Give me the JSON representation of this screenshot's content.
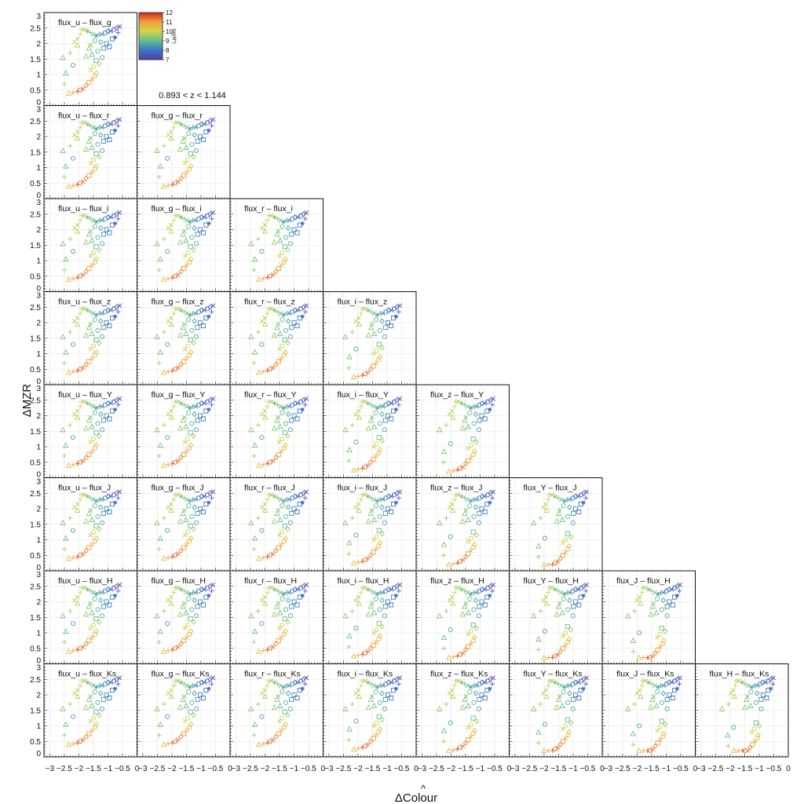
{
  "chart_data": {
    "type": "scatter",
    "layout": "lower-triangle pair grid",
    "redshift_label": "0.893 < z < 1.144",
    "xlabel": "ΔColour",
    "xlabel_hat": "^",
    "ylabel": "ΔMZR",
    "xlim": [
      -3.2,
      0
    ],
    "ylim": [
      0,
      3
    ],
    "x_ticks": [
      "−3",
      "−2.5",
      "−2",
      "−1.5",
      "−1",
      "−0.5",
      "0"
    ],
    "y_ticks": [
      "0",
      "0.5",
      "1",
      "1.5",
      "2",
      "2.5",
      "3"
    ],
    "grid": true,
    "colorbar": {
      "label": "log(M*)",
      "ticks": [
        "12",
        "11",
        "10",
        "9",
        "8",
        "7"
      ],
      "min": 7,
      "max": 12,
      "colors": [
        "#5a3d9e",
        "#3b74c9",
        "#5fbf8e",
        "#cfd64a",
        "#f3a03a",
        "#cc2a1e"
      ]
    },
    "panels": [
      {
        "row": 0,
        "col": 0,
        "title": "flux_u – flux_g"
      },
      {
        "row": 1,
        "col": 0,
        "title": "flux_u – flux_r"
      },
      {
        "row": 1,
        "col": 1,
        "title": "flux_g – flux_r"
      },
      {
        "row": 2,
        "col": 0,
        "title": "flux_u – flux_i"
      },
      {
        "row": 2,
        "col": 1,
        "title": "flux_g – flux_i"
      },
      {
        "row": 2,
        "col": 2,
        "title": "flux_r – flux_i"
      },
      {
        "row": 3,
        "col": 0,
        "title": "flux_u – flux_z"
      },
      {
        "row": 3,
        "col": 1,
        "title": "flux_g – flux_z"
      },
      {
        "row": 3,
        "col": 2,
        "title": "flux_r – flux_z"
      },
      {
        "row": 3,
        "col": 3,
        "title": "flux_i – flux_z"
      },
      {
        "row": 4,
        "col": 0,
        "title": "flux_u – flux_Y"
      },
      {
        "row": 4,
        "col": 1,
        "title": "flux_g – flux_Y"
      },
      {
        "row": 4,
        "col": 2,
        "title": "flux_r – flux_Y"
      },
      {
        "row": 4,
        "col": 3,
        "title": "flux_i – flux_Y"
      },
      {
        "row": 4,
        "col": 4,
        "title": "flux_z – flux_Y"
      },
      {
        "row": 5,
        "col": 0,
        "title": "flux_u – flux_J"
      },
      {
        "row": 5,
        "col": 1,
        "title": "flux_g – flux_J"
      },
      {
        "row": 5,
        "col": 2,
        "title": "flux_r – flux_J"
      },
      {
        "row": 5,
        "col": 3,
        "title": "flux_i – flux_J"
      },
      {
        "row": 5,
        "col": 4,
        "title": "flux_z – flux_J"
      },
      {
        "row": 5,
        "col": 5,
        "title": "flux_Y – flux_J"
      },
      {
        "row": 6,
        "col": 0,
        "title": "flux_u – flux_H"
      },
      {
        "row": 6,
        "col": 1,
        "title": "flux_g – flux_H"
      },
      {
        "row": 6,
        "col": 2,
        "title": "flux_r – flux_H"
      },
      {
        "row": 6,
        "col": 3,
        "title": "flux_i – flux_H"
      },
      {
        "row": 6,
        "col": 4,
        "title": "flux_z – flux_H"
      },
      {
        "row": 6,
        "col": 5,
        "title": "flux_Y – flux_H"
      },
      {
        "row": 6,
        "col": 6,
        "title": "flux_J – flux_H"
      },
      {
        "row": 7,
        "col": 0,
        "title": "flux_u – flux_Ks"
      },
      {
        "row": 7,
        "col": 1,
        "title": "flux_g – flux_Ks"
      },
      {
        "row": 7,
        "col": 2,
        "title": "flux_r – flux_Ks"
      },
      {
        "row": 7,
        "col": 3,
        "title": "flux_i – flux_Ks"
      },
      {
        "row": 7,
        "col": 4,
        "title": "flux_z – flux_Ks"
      },
      {
        "row": 7,
        "col": 5,
        "title": "flux_Y – flux_Ks"
      },
      {
        "row": 7,
        "col": 6,
        "title": "flux_J – flux_Ks"
      },
      {
        "row": 7,
        "col": 7,
        "title": "flux_H – flux_Ks"
      }
    ],
    "points": [
      {
        "x": -0.6,
        "y": 2.55,
        "m": 7.2,
        "s": "x"
      },
      {
        "x": -0.7,
        "y": 2.5,
        "m": 7.4,
        "s": "diamond"
      },
      {
        "x": -0.8,
        "y": 2.45,
        "m": 7.6,
        "s": "circle"
      },
      {
        "x": -0.9,
        "y": 2.4,
        "m": 7.8,
        "s": "x"
      },
      {
        "x": -0.65,
        "y": 2.35,
        "m": 7.5,
        "s": "plus"
      },
      {
        "x": -1.0,
        "y": 2.4,
        "m": 8.0,
        "s": "diamond"
      },
      {
        "x": -1.1,
        "y": 2.35,
        "m": 8.2,
        "s": "circle"
      },
      {
        "x": -1.2,
        "y": 2.3,
        "m": 8.4,
        "s": "x"
      },
      {
        "x": -0.75,
        "y": 2.2,
        "m": 7.7,
        "s": "star"
      },
      {
        "x": -0.85,
        "y": 2.15,
        "m": 8.0,
        "s": "square"
      },
      {
        "x": -1.3,
        "y": 2.3,
        "m": 8.6,
        "s": "plus"
      },
      {
        "x": -1.4,
        "y": 2.25,
        "m": 8.8,
        "s": "star"
      },
      {
        "x": -1.5,
        "y": 2.3,
        "m": 9.0,
        "s": "x"
      },
      {
        "x": -1.6,
        "y": 2.35,
        "m": 9.2,
        "s": "plus"
      },
      {
        "x": -1.7,
        "y": 2.4,
        "m": 9.4,
        "s": "star"
      },
      {
        "x": -1.8,
        "y": 2.45,
        "m": 9.6,
        "s": "x"
      },
      {
        "x": -1.9,
        "y": 2.45,
        "m": 9.8,
        "s": "plus"
      },
      {
        "x": -1.45,
        "y": 2.1,
        "m": 9.0,
        "s": "circle"
      },
      {
        "x": -1.25,
        "y": 2.05,
        "m": 8.6,
        "s": "diamond"
      },
      {
        "x": -1.05,
        "y": 2.0,
        "m": 8.3,
        "s": "square"
      },
      {
        "x": -0.95,
        "y": 1.9,
        "m": 8.1,
        "s": "square"
      },
      {
        "x": -1.15,
        "y": 1.85,
        "m": 8.4,
        "s": "square"
      },
      {
        "x": -1.35,
        "y": 1.75,
        "m": 8.8,
        "s": "circle"
      },
      {
        "x": -1.55,
        "y": 1.65,
        "m": 9.1,
        "s": "triangle"
      },
      {
        "x": -1.75,
        "y": 1.6,
        "m": 9.5,
        "s": "triangle"
      },
      {
        "x": -1.6,
        "y": 1.95,
        "m": 9.3,
        "s": "x"
      },
      {
        "x": -1.65,
        "y": 1.85,
        "m": 9.4,
        "s": "triangle"
      },
      {
        "x": -1.2,
        "y": 1.55,
        "m": 8.6,
        "s": "circle"
      },
      {
        "x": -1.4,
        "y": 1.45,
        "m": 9.0,
        "s": "square"
      },
      {
        "x": -1.3,
        "y": 1.35,
        "m": 9.6,
        "s": "diamond"
      },
      {
        "x": -1.5,
        "y": 1.25,
        "m": 10.0,
        "s": "circle"
      },
      {
        "x": -1.6,
        "y": 1.15,
        "m": 10.2,
        "s": "x"
      },
      {
        "x": -1.4,
        "y": 1.05,
        "m": 10.4,
        "s": "diamond"
      },
      {
        "x": -1.45,
        "y": 0.95,
        "m": 10.6,
        "s": "circle"
      },
      {
        "x": -1.55,
        "y": 0.85,
        "m": 10.8,
        "s": "x"
      },
      {
        "x": -1.65,
        "y": 0.75,
        "m": 11.0,
        "s": "square"
      },
      {
        "x": -1.75,
        "y": 0.65,
        "m": 11.2,
        "s": "diamond"
      },
      {
        "x": -1.85,
        "y": 0.55,
        "m": 11.3,
        "s": "x"
      },
      {
        "x": -1.95,
        "y": 0.5,
        "m": 11.4,
        "s": "circle"
      },
      {
        "x": -2.05,
        "y": 0.45,
        "m": 11.6,
        "s": "plus"
      },
      {
        "x": -2.2,
        "y": 0.42,
        "m": 11.0,
        "s": "plus"
      },
      {
        "x": -2.35,
        "y": 0.4,
        "m": 10.4,
        "s": "triangle"
      },
      {
        "x": -2.5,
        "y": 0.7,
        "m": 9.6,
        "s": "plus"
      },
      {
        "x": -2.45,
        "y": 1.05,
        "m": 9.2,
        "s": "triangle"
      },
      {
        "x": -2.2,
        "y": 1.3,
        "m": 8.6,
        "s": "circle"
      },
      {
        "x": -2.55,
        "y": 1.55,
        "m": 9.4,
        "s": "triangle"
      },
      {
        "x": -2.3,
        "y": 1.7,
        "m": 9.6,
        "s": "plus"
      },
      {
        "x": -2.05,
        "y": 1.95,
        "m": 9.8,
        "s": "triangle"
      },
      {
        "x": -2.15,
        "y": 2.05,
        "m": 9.9,
        "s": "x"
      },
      {
        "x": -1.95,
        "y": 2.3,
        "m": 10.0,
        "s": "plus"
      },
      {
        "x": -2.05,
        "y": 2.15,
        "m": 9.7,
        "s": "x"
      }
    ]
  }
}
